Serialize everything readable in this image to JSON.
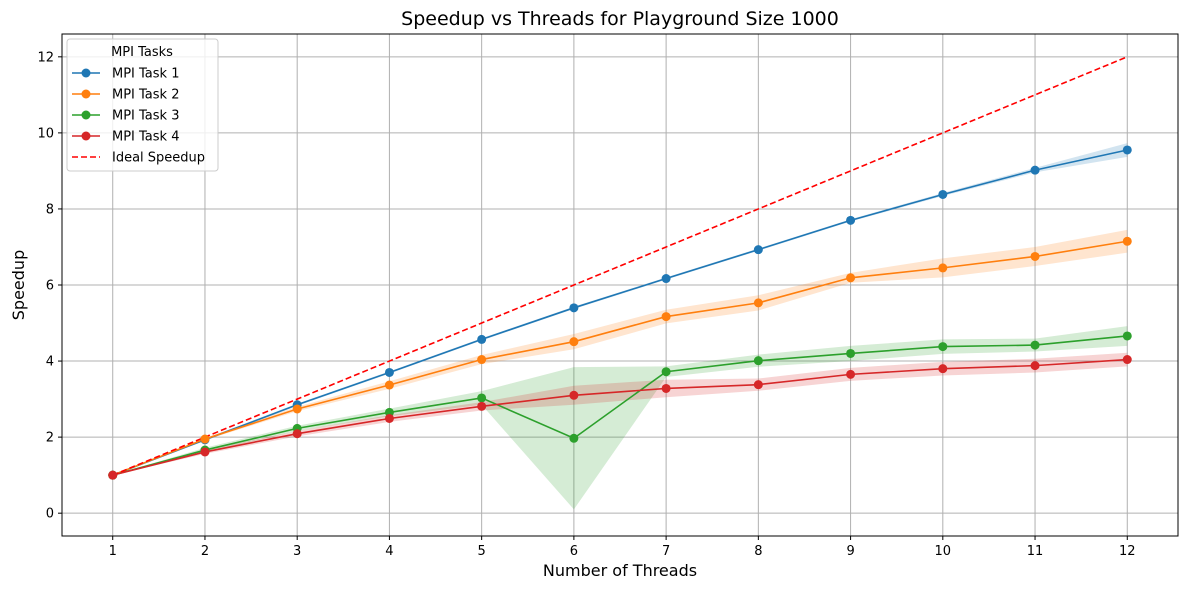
{
  "chart_data": {
    "type": "line",
    "title": "Speedup vs Threads for Playground Size 1000",
    "xlabel": "Number of Threads",
    "ylabel": "Speedup",
    "x": [
      1,
      2,
      3,
      4,
      5,
      6,
      7,
      8,
      9,
      10,
      11,
      12
    ],
    "xlim": [
      0.45,
      12.55
    ],
    "ylim": [
      -0.6,
      12.6
    ],
    "yticks": [
      0,
      2,
      4,
      6,
      8,
      10,
      12
    ],
    "grid": true,
    "legend": {
      "title": "MPI Tasks",
      "placement": "top-left"
    },
    "series": [
      {
        "name": "MPI Task 1",
        "color": "#1f77b4",
        "style": "solid-markers",
        "values": [
          1.0,
          1.93,
          2.85,
          3.7,
          4.57,
          5.4,
          6.17,
          6.93,
          7.7,
          8.38,
          9.02,
          9.55
        ],
        "band_lower": [
          1.0,
          1.9,
          2.82,
          3.67,
          4.54,
          5.37,
          6.14,
          6.9,
          7.67,
          8.34,
          8.96,
          9.37
        ],
        "band_upper": [
          1.0,
          1.96,
          2.88,
          3.73,
          4.6,
          5.43,
          6.2,
          6.96,
          7.73,
          8.42,
          9.08,
          9.73
        ]
      },
      {
        "name": "MPI Task 2",
        "color": "#ff7f0e",
        "style": "solid-markers",
        "values": [
          1.0,
          1.95,
          2.74,
          3.37,
          4.04,
          4.51,
          5.17,
          5.53,
          6.19,
          6.45,
          6.75,
          7.15
        ],
        "band_lower": [
          1.0,
          1.92,
          2.68,
          3.27,
          3.92,
          4.31,
          4.99,
          5.33,
          6.06,
          6.2,
          6.5,
          6.85
        ],
        "band_upper": [
          1.0,
          1.98,
          2.8,
          3.47,
          4.16,
          4.71,
          5.35,
          5.73,
          6.32,
          6.7,
          7.0,
          7.45
        ]
      },
      {
        "name": "MPI Task 3",
        "color": "#2ca02c",
        "style": "solid-markers",
        "values": [
          1.0,
          1.66,
          2.23,
          2.65,
          3.03,
          1.97,
          3.72,
          4.01,
          4.2,
          4.38,
          4.42,
          4.66
        ],
        "band_lower": [
          1.0,
          1.6,
          2.16,
          2.55,
          2.85,
          0.1,
          3.58,
          3.85,
          4.0,
          4.19,
          4.25,
          4.4
        ],
        "band_upper": [
          1.0,
          1.72,
          2.3,
          2.75,
          3.21,
          3.84,
          3.86,
          4.17,
          4.4,
          4.57,
          4.59,
          4.92
        ]
      },
      {
        "name": "MPI Task 4",
        "color": "#d62728",
        "style": "solid-markers",
        "values": [
          1.0,
          1.61,
          2.09,
          2.49,
          2.81,
          3.1,
          3.28,
          3.38,
          3.65,
          3.8,
          3.88,
          4.04
        ],
        "band_lower": [
          1.0,
          1.56,
          2.02,
          2.4,
          2.7,
          2.85,
          3.05,
          3.22,
          3.48,
          3.62,
          3.7,
          3.86
        ],
        "band_upper": [
          1.0,
          1.66,
          2.16,
          2.58,
          2.92,
          3.35,
          3.51,
          3.54,
          3.82,
          3.98,
          4.06,
          4.22
        ]
      },
      {
        "name": "Ideal Speedup",
        "color": "#ff0000",
        "style": "dashed",
        "values": [
          1,
          2,
          3,
          4,
          5,
          6,
          7,
          8,
          9,
          10,
          11,
          12
        ]
      }
    ]
  }
}
